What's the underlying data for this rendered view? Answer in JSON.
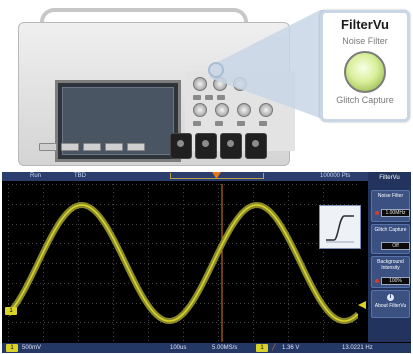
{
  "callout": {
    "title": "FilterVu",
    "noise_label": "Noise Filter",
    "glitch_label": "Glitch Capture",
    "knob_icon": "filter-knob-icon"
  },
  "scope_status_top": {
    "run_state": "Run",
    "trigger_info": "TBD",
    "record_info": "100000 Pts"
  },
  "side_menu": {
    "title": "FilterVu",
    "items": [
      {
        "label": "Noise Filter",
        "value": "1.00MHz"
      },
      {
        "label": "Glitch Capture",
        "value": "Off"
      },
      {
        "label": "Background Intensity",
        "value": "100%"
      },
      {
        "label": "About FilterVu",
        "value": ""
      }
    ]
  },
  "channel": {
    "marker": "1",
    "color": "#d8d42a"
  },
  "scope_status_bottom": {
    "ch1_tag": "1",
    "ch1_scale": "500mV",
    "timebase": "100us",
    "sample_rate": "5.00MS/s",
    "trigger_tag": "1",
    "trigger_level": "1.36 V",
    "frequency": "13.0221 Hz"
  },
  "colors": {
    "trace": "#d8d42a",
    "trace_envelope": "#8a8a2a",
    "screen_bg": "#000000",
    "menu_bg": "#22345e",
    "grid": "#4a4a4a",
    "trigger_marker": "#e07a1d"
  }
}
